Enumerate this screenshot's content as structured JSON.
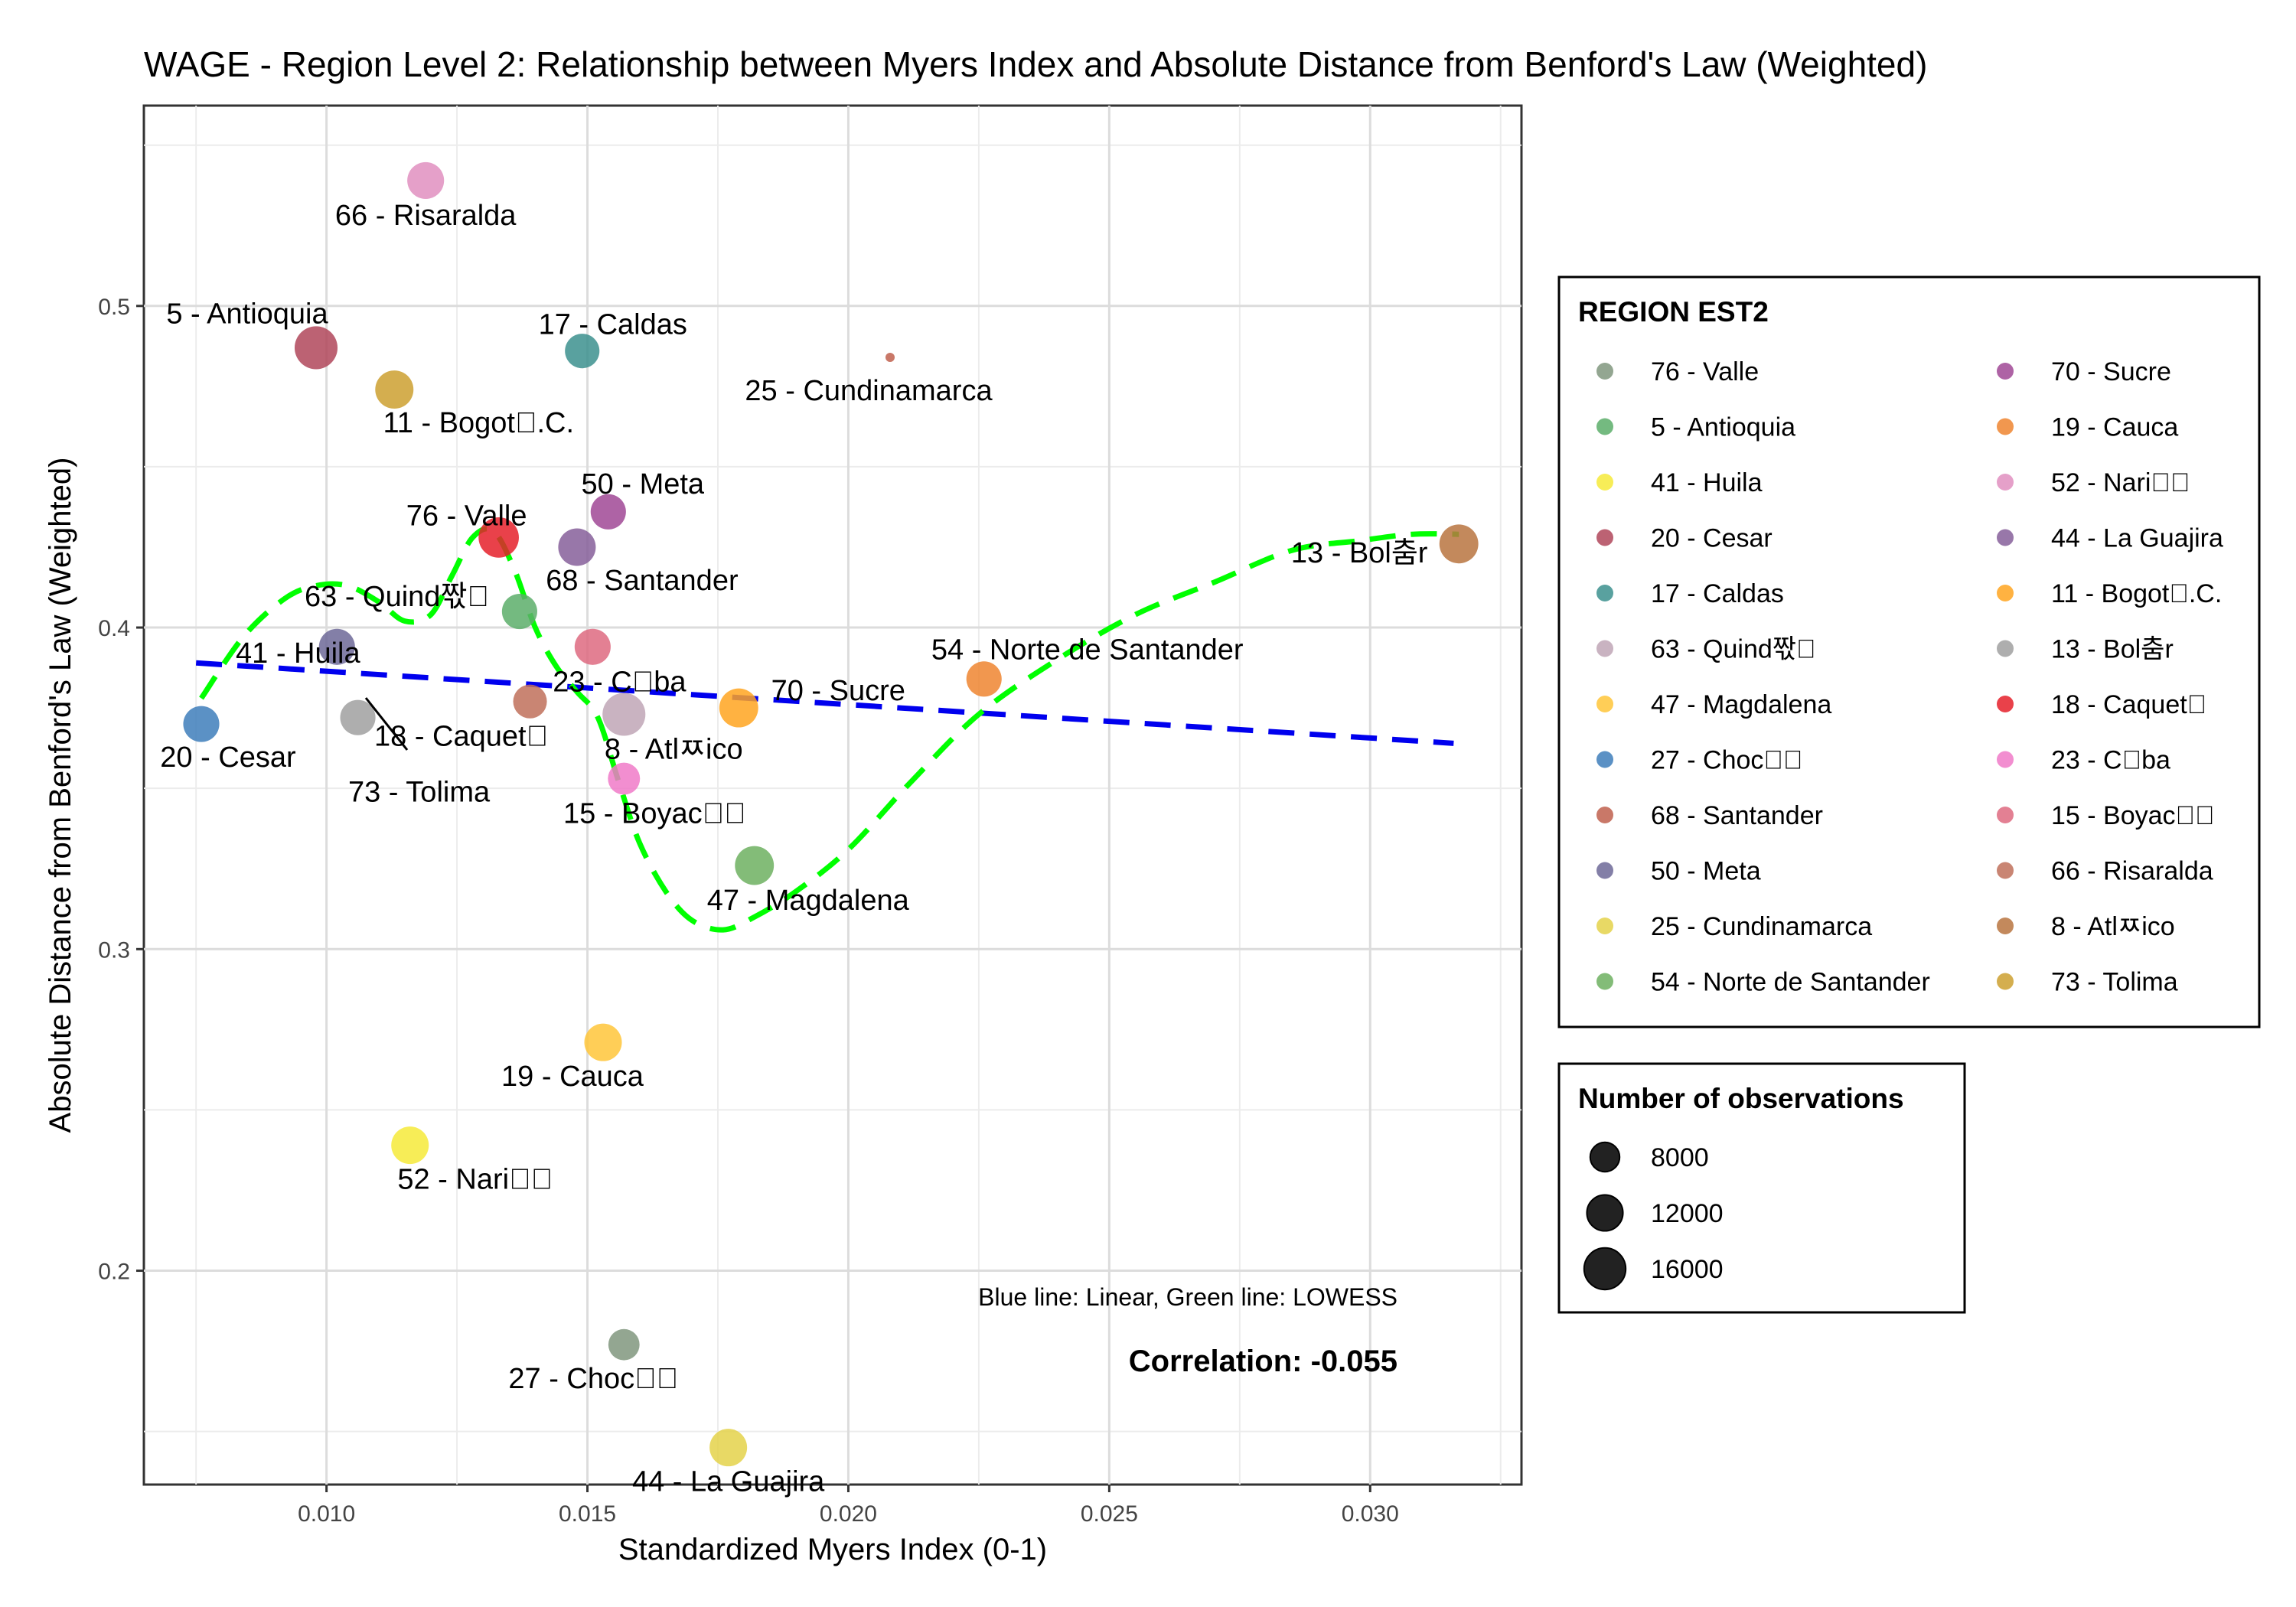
{
  "chart_data": {
    "type": "scatter",
    "title": "WAGE - Region Level 2: Relationship between Myers Index and Absolute Distance from Benford's Law (Weighted)",
    "xlabel": "Standardized Myers Index (0-1)",
    "ylabel": "Absolute Distance from Benford's Law (Weighted)",
    "xlim": [
      0.0065,
      0.0329
    ],
    "ylim": [
      0.1335,
      0.5623
    ],
    "x_ticks": [
      {
        "value": 0.01,
        "label": "0.010"
      },
      {
        "value": 0.015,
        "label": "0.015"
      },
      {
        "value": 0.02,
        "label": "0.020"
      },
      {
        "value": 0.025,
        "label": "0.025"
      },
      {
        "value": 0.03,
        "label": "0.030"
      }
    ],
    "y_ticks": [
      {
        "value": 0.2,
        "label": "0.2"
      },
      {
        "value": 0.3,
        "label": "0.3"
      },
      {
        "value": 0.4,
        "label": "0.4"
      },
      {
        "value": 0.5,
        "label": "0.5"
      }
    ],
    "grid": true,
    "points": [
      {
        "label": "66 - Risaralda",
        "x": 0.0119,
        "y": 0.539,
        "size": 12500,
        "color": "#E08FBF"
      },
      {
        "label": "5 - Antioquia",
        "x": 0.0098,
        "y": 0.487,
        "size": 17000,
        "color": "#B0465A"
      },
      {
        "label": "17 - Caldas",
        "x": 0.0149,
        "y": 0.486,
        "size": 11000,
        "color": "#3C918E"
      },
      {
        "label": "11 - Bogot\u0000.C.",
        "x": 0.0113,
        "y": 0.474,
        "size": 13500,
        "color": "#CCA030"
      },
      {
        "label": "25 - Cundinamarca",
        "x": 0.0208,
        "y": 0.484,
        "size": 600,
        "color": "#C0604E"
      },
      {
        "label": "50 - Meta",
        "x": 0.0154,
        "y": 0.436,
        "size": 11500,
        "color": "#A04895"
      },
      {
        "label": "76 - Valle",
        "x": 0.0133,
        "y": 0.428,
        "size": 15000,
        "color": "#E5202A"
      },
      {
        "label": "68 - Santander",
        "x": 0.0148,
        "y": 0.425,
        "size": 13000,
        "color": "#865F9A"
      },
      {
        "label": "63 - Quind짟\u0000",
        "x": 0.0102,
        "y": 0.394,
        "size": 12000,
        "color": "#6D6898"
      },
      {
        "label": "41 - Huila",
        "x": 0.0137,
        "y": 0.405,
        "size": 11500,
        "color": "#5CAE6A"
      },
      {
        "label": "23 - C\u0000ba",
        "x": 0.0151,
        "y": 0.394,
        "size": 12000,
        "color": "#DE6A80"
      },
      {
        "label": "70 - Sucre",
        "x": 0.0179,
        "y": 0.375,
        "size": 14000,
        "color": "#FFA520"
      },
      {
        "label": "54 - Norte de Santander",
        "x": 0.0226,
        "y": 0.384,
        "size": 11500,
        "color": "#EE8530"
      },
      {
        "label": "13 - Bol춤r",
        "x": 0.0317,
        "y": 0.426,
        "size": 14000,
        "color": "#B87440"
      },
      {
        "label": "20 - Cesar",
        "x": 0.0076,
        "y": 0.37,
        "size": 12000,
        "color": "#3E7EBB"
      },
      {
        "label": "73 - Tolima",
        "x": 0.0106,
        "y": 0.372,
        "size": 11500,
        "color": "#A0A0A0"
      },
      {
        "label": "18 - Caquet\u0000",
        "x": 0.0139,
        "y": 0.377,
        "size": 10500,
        "color": "#C0705A"
      },
      {
        "label": "8 - Atlㅉico",
        "x": 0.0157,
        "y": 0.373,
        "size": 17000,
        "color": "#C0A6B6"
      },
      {
        "label": "15 - Boyac\u0000\u0000",
        "x": 0.0157,
        "y": 0.353,
        "size": 9500,
        "color": "#F07AC8"
      },
      {
        "label": "47 - Magdalena",
        "x": 0.0182,
        "y": 0.326,
        "size": 14000,
        "color": "#6DB060"
      },
      {
        "label": "19 - Cauca",
        "x": 0.0153,
        "y": 0.271,
        "size": 13000,
        "color": "#FFC53A"
      },
      {
        "label": "52 - Nari\u0000\u0000",
        "x": 0.0116,
        "y": 0.239,
        "size": 13000,
        "color": "#F6EA3A"
      },
      {
        "label": "27 - Choc\u0000\u0000",
        "x": 0.0157,
        "y": 0.177,
        "size": 9000,
        "color": "#80977E"
      },
      {
        "label": "44 - La Guajira",
        "x": 0.0177,
        "y": 0.145,
        "size": 13000,
        "color": "#E4D24A"
      }
    ],
    "linear_fit": {
      "name": "Linear",
      "color": "#0000EE",
      "x": [
        0.0075,
        0.0316
      ],
      "y": [
        0.389,
        0.364
      ]
    },
    "lowess_fit": {
      "name": "LOWESS",
      "color": "#00FF00",
      "x": [
        0.0076,
        0.0084,
        0.0092,
        0.0098,
        0.0104,
        0.011,
        0.0115,
        0.012,
        0.0124,
        0.0128,
        0.0132,
        0.0136,
        0.014,
        0.0144,
        0.0148,
        0.0152,
        0.0156,
        0.016,
        0.0165,
        0.017,
        0.0176,
        0.0182,
        0.019,
        0.02,
        0.0212,
        0.0225,
        0.024,
        0.0255,
        0.027,
        0.0285,
        0.0298,
        0.0308,
        0.0317
      ],
      "y": [
        0.378,
        0.397,
        0.409,
        0.413,
        0.413,
        0.408,
        0.402,
        0.404,
        0.416,
        0.428,
        0.43,
        0.418,
        0.4,
        0.388,
        0.38,
        0.372,
        0.352,
        0.333,
        0.318,
        0.309,
        0.306,
        0.31,
        0.318,
        0.331,
        0.352,
        0.373,
        0.39,
        0.404,
        0.414,
        0.424,
        0.427,
        0.429,
        0.429
      ]
    },
    "legend": {
      "title": "REGION EST2",
      "placement": "right",
      "items": [
        {
          "label": "76 - Valle",
          "color": "#80977E"
        },
        {
          "label": " 5 - Antioquia",
          "color": "#5CAE6A"
        },
        {
          "label": "41 - Huila",
          "color": "#F6EA3A"
        },
        {
          "label": "20 - Cesar",
          "color": "#B0465A"
        },
        {
          "label": "17 - Caldas",
          "color": "#3C918E"
        },
        {
          "label": "63 - Quind짟\u0000",
          "color": "#C0A6B6"
        },
        {
          "label": "47 - Magdalena",
          "color": "#FFC53A"
        },
        {
          "label": "27 - Choc\u0000\u0000",
          "color": "#3E7EBB"
        },
        {
          "label": "68 - Santander",
          "color": "#C0604E"
        },
        {
          "label": "50 - Meta",
          "color": "#6D6898"
        },
        {
          "label": "25 - Cundinamarca",
          "color": "#E4D24A"
        },
        {
          "label": "54 - Norte de Santander",
          "color": "#6DB060"
        },
        {
          "label": "70 - Sucre",
          "color": "#A04895"
        },
        {
          "label": "19 - Cauca",
          "color": "#EE8530"
        },
        {
          "label": "52 - Nari\u0000\u0000",
          "color": "#E08FBF"
        },
        {
          "label": "44 - La Guajira",
          "color": "#865F9A"
        },
        {
          "label": "11 - Bogot\u0000.C.",
          "color": "#FFA520"
        },
        {
          "label": "13 - Bol춤r",
          "color": "#A0A0A0"
        },
        {
          "label": "18 - Caquet\u0000",
          "color": "#E5202A"
        },
        {
          "label": "23 - C\u0000ba",
          "color": "#F07AC8"
        },
        {
          "label": "15 - Boyac\u0000\u0000",
          "color": "#DE6A80"
        },
        {
          "label": "66 - Risaralda",
          "color": "#C0705A"
        },
        {
          "label": " 8 - Atlㅉico",
          "color": "#B87440"
        },
        {
          "label": "73 - Tolima",
          "color": "#CCA030"
        }
      ]
    },
    "size_legend": {
      "title": "Number of observations",
      "items": [
        {
          "label": "8000",
          "value": 8000
        },
        {
          "label": "12000",
          "value": 12000
        },
        {
          "label": "16000",
          "value": 16000
        }
      ]
    },
    "annotations": {
      "note": "Blue line: Linear, Green line: LOWESS",
      "correlation": "Correlation: -0.055"
    }
  }
}
